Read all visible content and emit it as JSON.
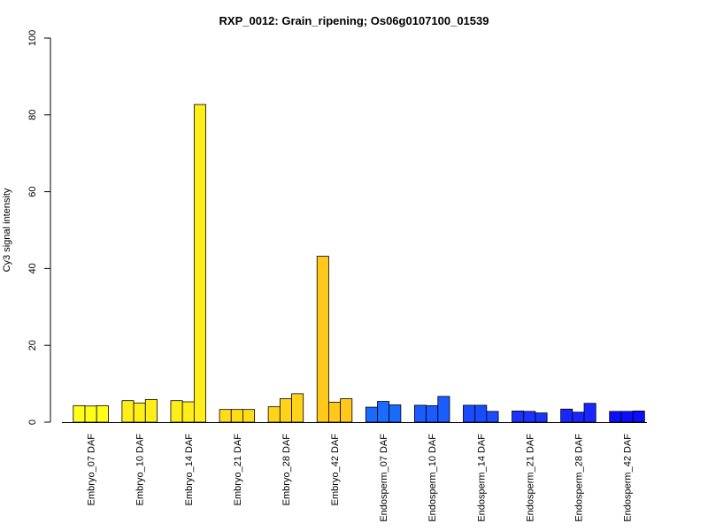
{
  "chart_data": {
    "type": "bar",
    "title": "RXP_0012: Grain_ripening; Os06g0107100_01539",
    "xlabel": "",
    "ylabel": "Cy3 signal intensity",
    "ylim": [
      0,
      100
    ],
    "yticks": [
      0,
      20,
      40,
      60,
      80,
      100
    ],
    "grid": false,
    "legend": "none",
    "groups": [
      {
        "label": "Embryo_07 DAF",
        "values": [
          4.3,
          4.2,
          4.3
        ],
        "color": "#ffff1a"
      },
      {
        "label": "Embryo_10 DAF",
        "values": [
          5.6,
          5.0,
          5.9
        ],
        "color": "#ffee1a"
      },
      {
        "label": "Embryo_14 DAF",
        "values": [
          5.6,
          5.3,
          82.7
        ],
        "color": "#ffee1a"
      },
      {
        "label": "Embryo_21 DAF",
        "values": [
          3.3,
          3.3,
          3.3
        ],
        "color": "#ffdd1a"
      },
      {
        "label": "Embryo_28 DAF",
        "values": [
          4.0,
          6.1,
          7.4
        ],
        "color": "#ffd31a"
      },
      {
        "label": "Embryo_42 DAF",
        "values": [
          43.2,
          5.2,
          6.1
        ],
        "color": "#ffc81a"
      },
      {
        "label": "Endosperm_07 DAF",
        "values": [
          3.9,
          5.4,
          4.5
        ],
        "color": "#1a6bff"
      },
      {
        "label": "Endosperm_10 DAF",
        "values": [
          4.4,
          4.3,
          6.7
        ],
        "color": "#1a5cff"
      },
      {
        "label": "Endosperm_14 DAF",
        "values": [
          4.4,
          4.4,
          2.8
        ],
        "color": "#1a4cff"
      },
      {
        "label": "Endosperm_21 DAF",
        "values": [
          2.9,
          2.8,
          2.4
        ],
        "color": "#1a33ff"
      },
      {
        "label": "Endosperm_28 DAF",
        "values": [
          3.4,
          2.6,
          4.9
        ],
        "color": "#1a26ff"
      },
      {
        "label": "Endosperm_42 DAF",
        "values": [
          2.8,
          2.8,
          2.9
        ],
        "color": "#0d0dff"
      }
    ]
  }
}
